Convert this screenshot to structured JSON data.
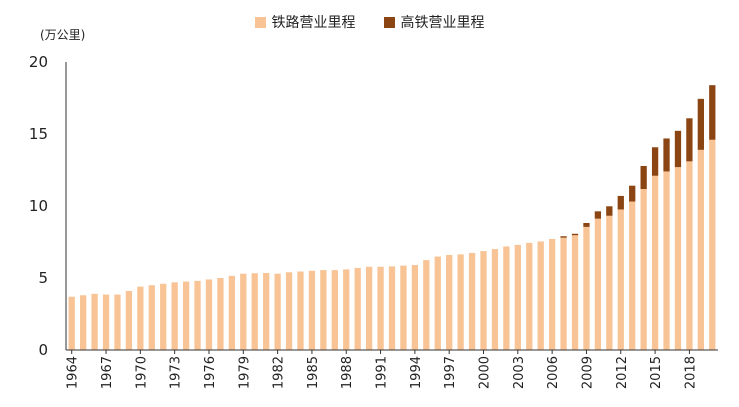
{
  "chart_data": {
    "type": "bar",
    "stacked": true,
    "unit_label": "(万公里)",
    "ylim": [
      0,
      20
    ],
    "yticks": [
      0,
      5,
      10,
      15,
      20
    ],
    "colors": {
      "rail": "#F8C496",
      "hsr": "#8B4513"
    },
    "legend_position": "top-center",
    "grid": false,
    "categories": [
      "1964",
      "1965",
      "1966",
      "1967",
      "1968",
      "1969",
      "1970",
      "1971",
      "1972",
      "1973",
      "1974",
      "1975",
      "1976",
      "1977",
      "1978",
      "1979",
      "1980",
      "1981",
      "1982",
      "1983",
      "1984",
      "1985",
      "1986",
      "1987",
      "1988",
      "1989",
      "1990",
      "1991",
      "1992",
      "1993",
      "1994",
      "1995",
      "1996",
      "1997",
      "1998",
      "1999",
      "2000",
      "2001",
      "2002",
      "2003",
      "2004",
      "2005",
      "2006",
      "2007",
      "2008",
      "2009",
      "2010",
      "2011",
      "2012",
      "2013",
      "2014",
      "2015",
      "2016",
      "2017",
      "2018",
      "2019",
      "2020"
    ],
    "xtick_labels": [
      "1964",
      "1967",
      "1970",
      "1973",
      "1976",
      "1979",
      "1982",
      "1985",
      "1988",
      "1991",
      "1994",
      "1997",
      "2000",
      "2003",
      "2006",
      "2009",
      "2012",
      "2015",
      "2018"
    ],
    "series": [
      {
        "name": "铁路营业里程",
        "values": [
          3.7,
          3.8,
          3.9,
          3.85,
          3.85,
          4.1,
          4.4,
          4.5,
          4.6,
          4.7,
          4.75,
          4.8,
          4.9,
          5.0,
          5.15,
          5.3,
          5.33,
          5.35,
          5.3,
          5.4,
          5.45,
          5.5,
          5.55,
          5.55,
          5.6,
          5.7,
          5.78,
          5.78,
          5.81,
          5.86,
          5.9,
          6.24,
          6.49,
          6.6,
          6.64,
          6.74,
          6.87,
          7.01,
          7.19,
          7.3,
          7.44,
          7.54,
          7.71,
          7.8,
          7.97,
          8.55,
          9.12,
          9.32,
          9.76,
          10.31,
          11.18,
          12.1,
          12.4,
          12.7,
          13.1,
          13.9,
          14.6
        ]
      },
      {
        "name": "高铁营业里程",
        "values": [
          0,
          0,
          0,
          0,
          0,
          0,
          0,
          0,
          0,
          0,
          0,
          0,
          0,
          0,
          0,
          0,
          0,
          0,
          0,
          0,
          0,
          0,
          0,
          0,
          0,
          0,
          0,
          0,
          0,
          0,
          0,
          0,
          0,
          0,
          0,
          0,
          0,
          0,
          0,
          0,
          0,
          0,
          0,
          0.1,
          0.1,
          0.27,
          0.51,
          0.66,
          0.94,
          1.1,
          1.6,
          1.98,
          2.29,
          2.52,
          2.99,
          3.54,
          3.79
        ]
      }
    ]
  }
}
